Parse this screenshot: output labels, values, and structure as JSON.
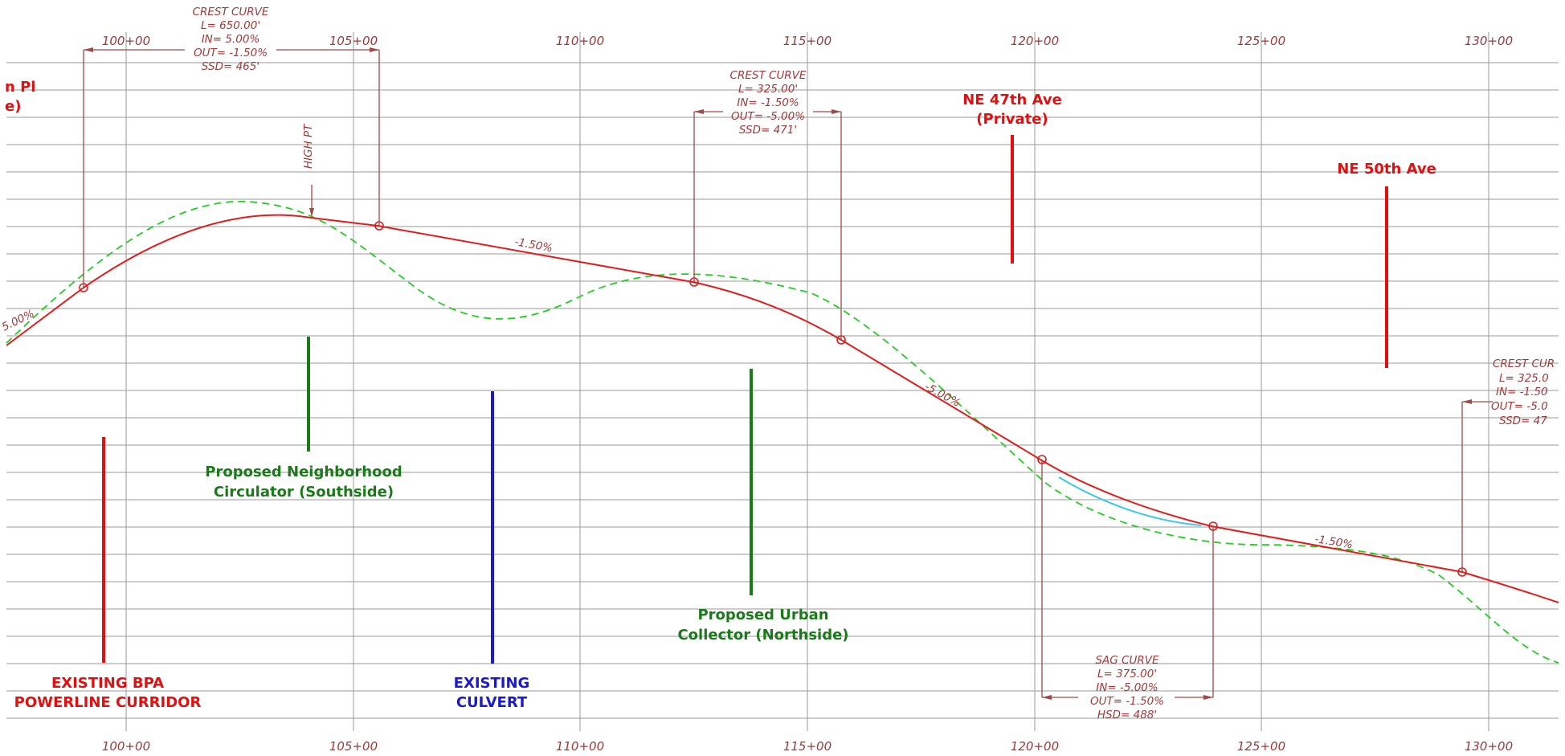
{
  "stations": [
    "100+00",
    "105+00",
    "110+00",
    "115+00",
    "120+00",
    "125+00",
    "130+00"
  ],
  "crest_curve_1": [
    "CREST CURVE",
    "L= 650.00'",
    "IN= 5.00%",
    "OUT= -1.50%",
    "SSD= 465'"
  ],
  "crest_curve_2": [
    "CREST CURVE",
    "L= 325.00'",
    "IN= -1.50%",
    "OUT= -5.00%",
    "SSD= 471'"
  ],
  "crest_curve_3": [
    "CREST CUR",
    "L= 325.0",
    "IN= -1.50",
    "OUT= -5.0",
    "SSD= 47"
  ],
  "sag_curve": [
    "SAG CURVE",
    "L= 375.00'",
    "IN= -5.00%",
    "OUT= -1.50%",
    "HSD= 488'"
  ],
  "high_point": "HIGH PT",
  "grades": {
    "g1": "5.00%",
    "g2": "-1.50%",
    "g3": "-5.00%",
    "g4": "-1.50%"
  },
  "cut_label": [
    "n Pl",
    "e)"
  ],
  "labels": {
    "ne47": [
      "NE 47th Ave",
      "(Private)"
    ],
    "ne50": [
      "NE 50th Ave"
    ],
    "bpa": [
      "EXISTING BPA",
      "POWERLINE CURRIDOR"
    ],
    "culvert": [
      "EXISTING",
      "CULVERT"
    ],
    "circulator": [
      "Proposed Neighborhood",
      "Circulator (Southside)"
    ],
    "collector": [
      "Proposed Urban",
      "Collector (Northside)"
    ]
  },
  "colors": {
    "grid": "#9a9a9a",
    "profile": "#e01e1e",
    "existing_ground": "#22cc22",
    "annotation": "#a03a3a",
    "green_label": "#1a7a1a",
    "blue_label": "#1a1acc",
    "red_label": "#e01010",
    "cyan_curve": "#3cc8e8"
  }
}
